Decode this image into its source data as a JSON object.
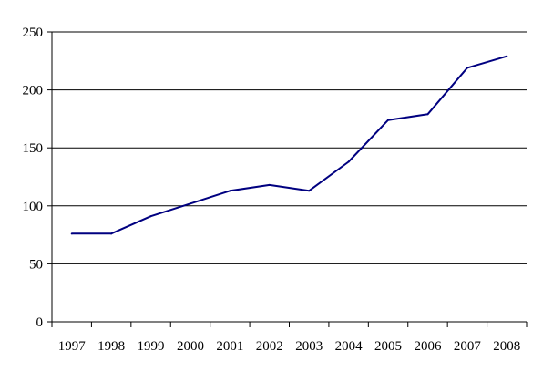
{
  "chart_data": {
    "type": "line",
    "title": "",
    "xlabel": "",
    "ylabel": "",
    "categories": [
      "1997",
      "1998",
      "1999",
      "2000",
      "2001",
      "2002",
      "2003",
      "2004",
      "2005",
      "2006",
      "2007",
      "2008"
    ],
    "series": [
      {
        "values": [
          76,
          76,
          91,
          102,
          113,
          118,
          113,
          138,
          174,
          179,
          219,
          229
        ]
      }
    ],
    "ylim": [
      0,
      250
    ],
    "yticks": [
      0,
      50,
      100,
      150,
      200,
      250
    ],
    "grid": "horizontal",
    "legend": "none"
  },
  "colors": {
    "line": "#000080",
    "grid": "#000000",
    "axis": "#000000"
  }
}
